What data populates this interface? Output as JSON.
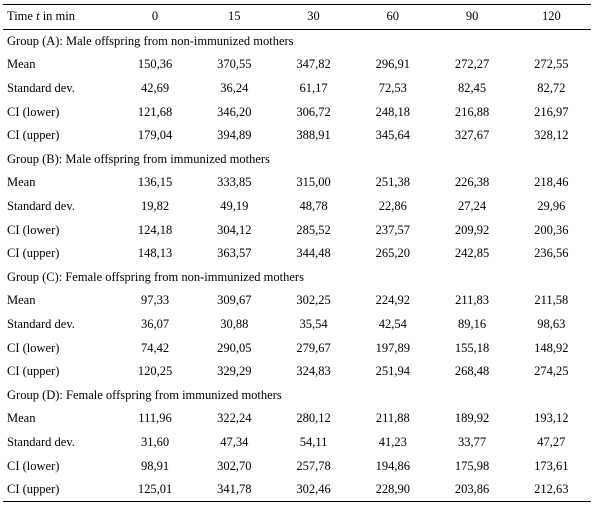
{
  "header": {
    "label_prefix": "Time ",
    "label_var": "t",
    "label_suffix": " in min",
    "times": [
      "0",
      "15",
      "30",
      "60",
      "90",
      "120"
    ]
  },
  "groups": [
    {
      "title": "Group (A): Male offspring from non-immunized mothers",
      "rows": [
        {
          "label": "Mean",
          "values": [
            "150,36",
            "370,55",
            "347,82",
            "296,91",
            "272,27",
            "272,55"
          ]
        },
        {
          "label": "Standard dev.",
          "values": [
            "42,69",
            "36,24",
            "61,17",
            "72,53",
            "82,45",
            "82,72"
          ]
        },
        {
          "label": "CI (lower)",
          "values": [
            "121,68",
            "346,20",
            "306,72",
            "248,18",
            "216,88",
            "216,97"
          ]
        },
        {
          "label": "CI (upper)",
          "values": [
            "179,04",
            "394,89",
            "388,91",
            "345,64",
            "327,67",
            "328,12"
          ]
        }
      ]
    },
    {
      "title": "Group (B): Male offspring from immunized mothers",
      "rows": [
        {
          "label": "Mean",
          "values": [
            "136,15",
            "333,85",
            "315,00",
            "251,38",
            "226,38",
            "218,46"
          ]
        },
        {
          "label": "Standard dev.",
          "values": [
            "19,82",
            "49,19",
            "48,78",
            "22,86",
            "27,24",
            "29,96"
          ]
        },
        {
          "label": "CI (lower)",
          "values": [
            "124,18",
            "304,12",
            "285,52",
            "237,57",
            "209,92",
            "200,36"
          ]
        },
        {
          "label": "CI (upper)",
          "values": [
            "148,13",
            "363,57",
            "344,48",
            "265,20",
            "242,85",
            "236,56"
          ]
        }
      ]
    },
    {
      "title": "Group (C): Female offspring from non-immunized mothers",
      "rows": [
        {
          "label": "Mean",
          "values": [
            "97,33",
            "309,67",
            "302,25",
            "224,92",
            "211,83",
            "211,58"
          ]
        },
        {
          "label": "Standard dev.",
          "values": [
            "36,07",
            "30,88",
            "35,54",
            "42,54",
            "89,16",
            "98,63"
          ]
        },
        {
          "label": "CI (lower)",
          "values": [
            "74,42",
            "290,05",
            "279,67",
            "197,89",
            "155,18",
            "148,92"
          ]
        },
        {
          "label": "CI (upper)",
          "values": [
            "120,25",
            "329,29",
            "324,83",
            "251,94",
            "268,48",
            "274,25"
          ]
        }
      ]
    },
    {
      "title": "Group (D): Female offspring from immunized mothers",
      "rows": [
        {
          "label": "Mean",
          "values": [
            "111,96",
            "322,24",
            "280,12",
            "211,88",
            "189,92",
            "193,12"
          ]
        },
        {
          "label": "Standard dev.",
          "values": [
            "31,60",
            "47,34",
            "54,11",
            "41,23",
            "33,77",
            "47,27"
          ]
        },
        {
          "label": "CI (lower)",
          "values": [
            "98,91",
            "302,70",
            "257,78",
            "194,86",
            "175,98",
            "173,61"
          ]
        },
        {
          "label": "CI (upper)",
          "values": [
            "125,01",
            "341,78",
            "302,46",
            "228,90",
            "203,86",
            "212,63"
          ]
        }
      ]
    }
  ]
}
